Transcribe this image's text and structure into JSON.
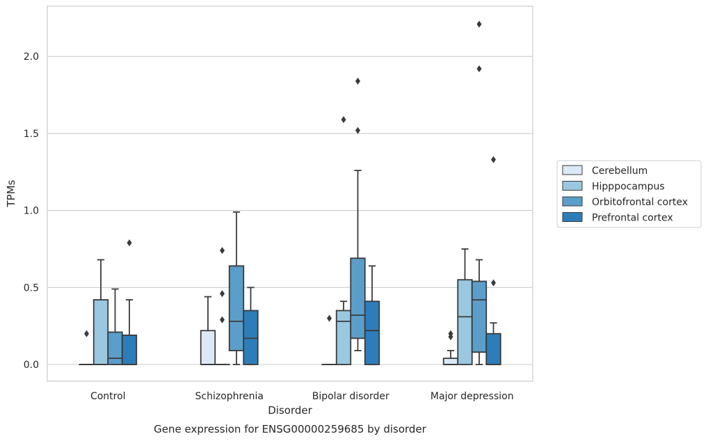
{
  "chart_data": {
    "type": "box",
    "title": "Gene expression for ENSG00000259685 by disorder",
    "xlabel": "Disorder",
    "ylabel": "TPMs",
    "ylim": [
      -0.11,
      2.33
    ],
    "yticks": [
      0.0,
      0.5,
      1.0,
      1.5,
      2.0
    ],
    "ytick_labels": [
      "0.0",
      "0.5",
      "1.0",
      "1.5",
      "2.0"
    ],
    "categories": [
      "Control",
      "Schizophrenia",
      "Bipolar disorder",
      "Major depression"
    ],
    "grid": "horizontal",
    "legend_position": "right",
    "series": [
      {
        "name": "Cerebellum",
        "color": "#dbe9f6",
        "boxes": [
          {
            "q1": 0.0,
            "median": 0.0,
            "q3": 0.0,
            "whisker_low": 0.0,
            "whisker_high": 0.0,
            "outliers": [
              0.2
            ]
          },
          {
            "q1": 0.0,
            "median": 0.0,
            "q3": 0.22,
            "whisker_low": 0.0,
            "whisker_high": 0.44,
            "outliers": []
          },
          {
            "q1": 0.0,
            "median": 0.0,
            "q3": 0.0,
            "whisker_low": 0.0,
            "whisker_high": 0.0,
            "outliers": [
              0.3
            ]
          },
          {
            "q1": 0.0,
            "median": 0.0,
            "q3": 0.04,
            "whisker_low": 0.0,
            "whisker_high": 0.09,
            "outliers": [
              0.18,
              0.2
            ]
          }
        ]
      },
      {
        "name": "Hipppocampus",
        "color": "#9ac8e0",
        "boxes": [
          {
            "q1": 0.0,
            "median": 0.0,
            "q3": 0.42,
            "whisker_low": 0.0,
            "whisker_high": 0.68,
            "outliers": []
          },
          {
            "q1": 0.0,
            "median": 0.0,
            "q3": 0.0,
            "whisker_low": 0.0,
            "whisker_high": 0.0,
            "outliers": [
              0.29,
              0.46,
              0.74
            ]
          },
          {
            "q1": 0.0,
            "median": 0.28,
            "q3": 0.35,
            "whisker_low": 0.0,
            "whisker_high": 0.41,
            "outliers": [
              1.59
            ]
          },
          {
            "q1": 0.0,
            "median": 0.31,
            "q3": 0.55,
            "whisker_low": 0.0,
            "whisker_high": 0.75,
            "outliers": []
          }
        ]
      },
      {
        "name": "Orbitofrontal cortex",
        "color": "#5a9ec9",
        "boxes": [
          {
            "q1": 0.0,
            "median": 0.04,
            "q3": 0.21,
            "whisker_low": 0.0,
            "whisker_high": 0.49,
            "outliers": []
          },
          {
            "q1": 0.09,
            "median": 0.28,
            "q3": 0.64,
            "whisker_low": 0.0,
            "whisker_high": 0.99,
            "outliers": []
          },
          {
            "q1": 0.17,
            "median": 0.32,
            "q3": 0.69,
            "whisker_low": 0.09,
            "whisker_high": 1.26,
            "outliers": [
              1.52,
              1.84
            ]
          },
          {
            "q1": 0.08,
            "median": 0.42,
            "q3": 0.54,
            "whisker_low": 0.0,
            "whisker_high": 0.68,
            "outliers": [
              1.92,
              2.21
            ]
          }
        ]
      },
      {
        "name": "Prefrontal cortex",
        "color": "#2d7dbb",
        "boxes": [
          {
            "q1": 0.0,
            "median": 0.0,
            "q3": 0.19,
            "whisker_low": 0.0,
            "whisker_high": 0.42,
            "outliers": [
              0.79
            ]
          },
          {
            "q1": 0.0,
            "median": 0.17,
            "q3": 0.35,
            "whisker_low": 0.0,
            "whisker_high": 0.5,
            "outliers": []
          },
          {
            "q1": 0.0,
            "median": 0.22,
            "q3": 0.41,
            "whisker_low": 0.0,
            "whisker_high": 0.64,
            "outliers": []
          },
          {
            "q1": 0.0,
            "median": 0.0,
            "q3": 0.2,
            "whisker_low": 0.0,
            "whisker_high": 0.27,
            "outliers": [
              0.53,
              1.33
            ]
          }
        ]
      }
    ]
  }
}
